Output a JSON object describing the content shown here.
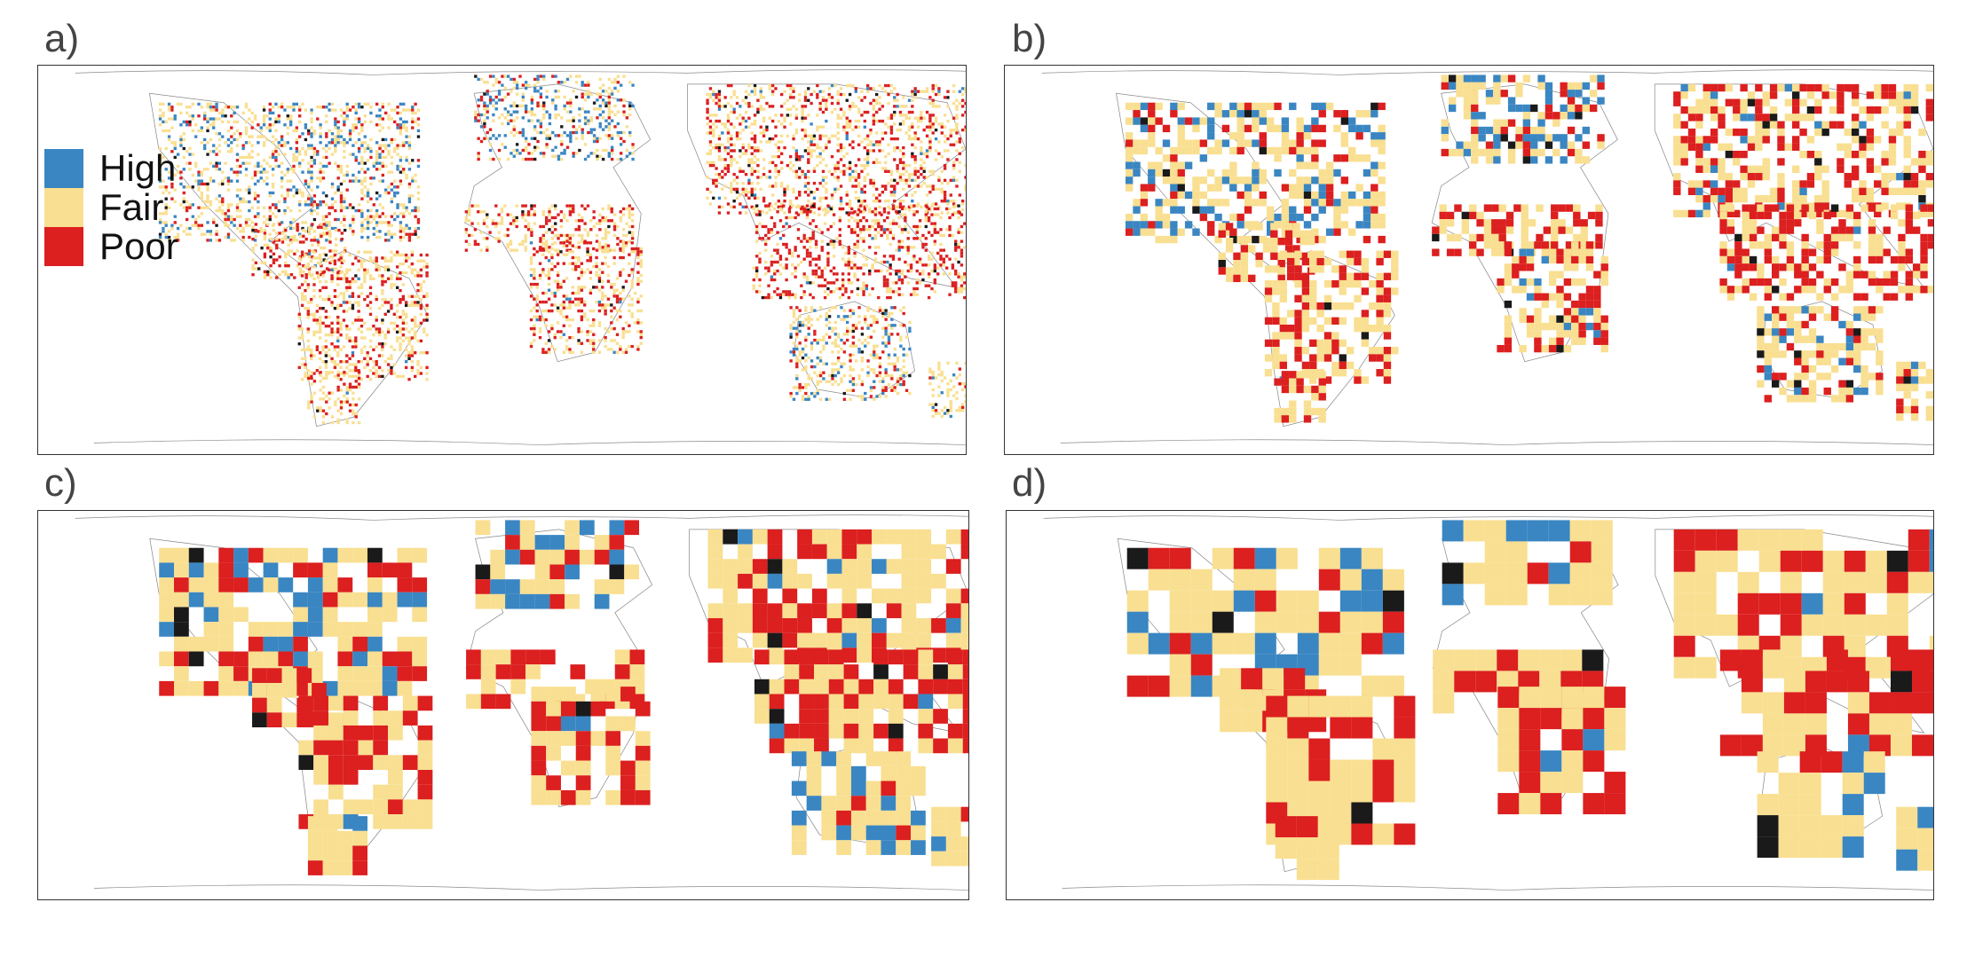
{
  "colors": {
    "high": "#3a86c2",
    "fair": "#f9df91",
    "poor": "#dc1f1f",
    "nodata": "#1a1a1a",
    "land": "#8a8a8a"
  },
  "legend": [
    {
      "label": "High",
      "color": "#3a86c2"
    },
    {
      "label": "Fair",
      "color": "#f9df91"
    },
    {
      "label": "Poor",
      "color": "#dc1f1f"
    }
  ],
  "panels": [
    {
      "id": "a",
      "label": "a)"
    },
    {
      "id": "b",
      "label": "b)"
    },
    {
      "id": "c",
      "label": "c)"
    },
    {
      "id": "d",
      "label": "d)"
    }
  ]
}
